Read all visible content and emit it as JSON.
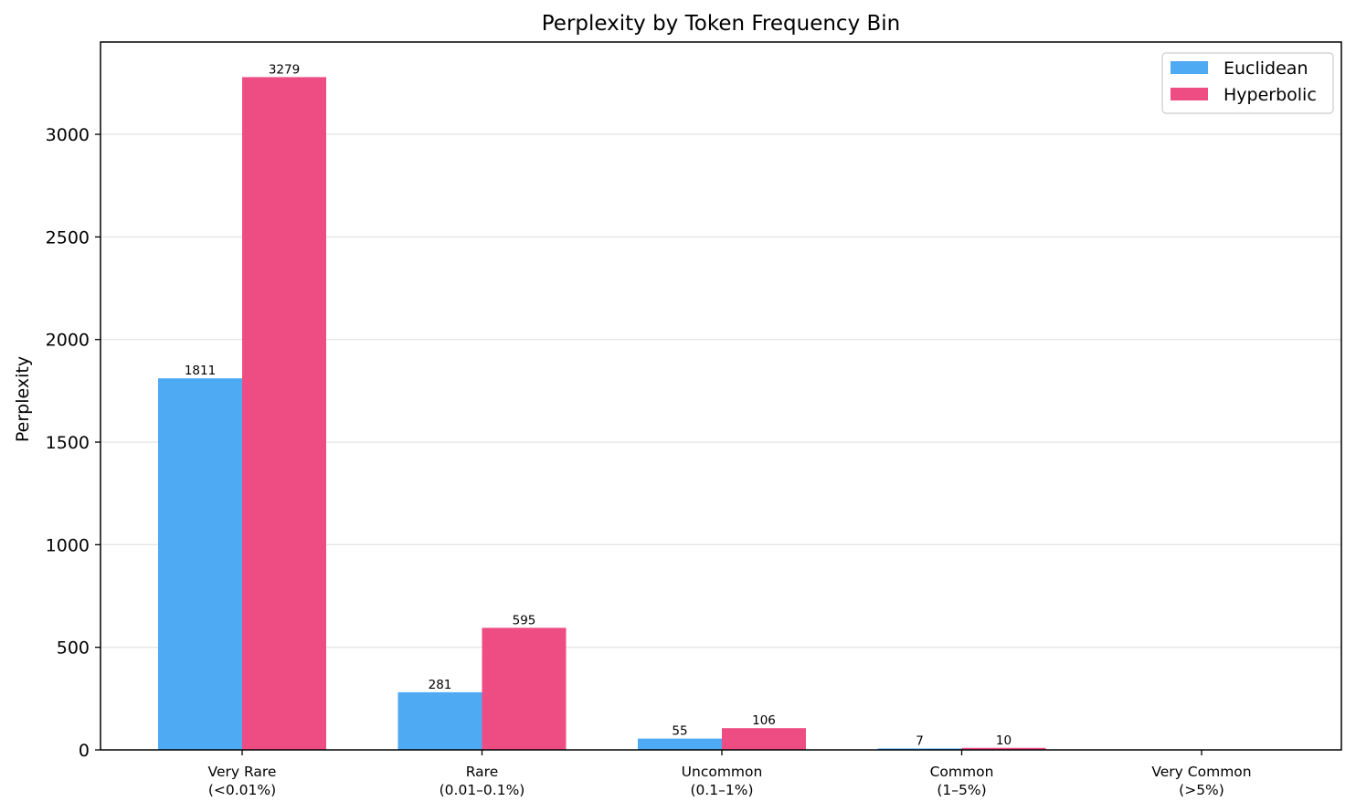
{
  "chart_data": {
    "type": "bar",
    "title": "Perplexity by Token Frequency Bin",
    "xlabel": "",
    "ylabel": "Perplexity",
    "ylim": [
      0,
      3450
    ],
    "yticks": [
      0,
      500,
      1000,
      1500,
      2000,
      2500,
      3000
    ],
    "grid": "horizontal",
    "legend_position": "top-right",
    "categories": [
      [
        "Very Rare",
        "(<0.01%)"
      ],
      [
        "Rare",
        "(0.01–0.1%)"
      ],
      [
        "Uncommon",
        "(0.1–1%)"
      ],
      [
        "Common",
        "(1–5%)"
      ],
      [
        "Very Common",
        "(>5%)"
      ]
    ],
    "series": [
      {
        "name": "Euclidean",
        "color": "#4DAAF3",
        "values": [
          1811,
          281,
          55,
          7,
          null
        ],
        "labels": [
          "1811",
          "281",
          "55",
          "7",
          null
        ]
      },
      {
        "name": "Hyperbolic",
        "color": "#EE4D83",
        "values": [
          3279,
          595,
          106,
          10,
          null
        ],
        "labels": [
          "3279",
          "595",
          "106",
          "10",
          null
        ]
      }
    ]
  }
}
